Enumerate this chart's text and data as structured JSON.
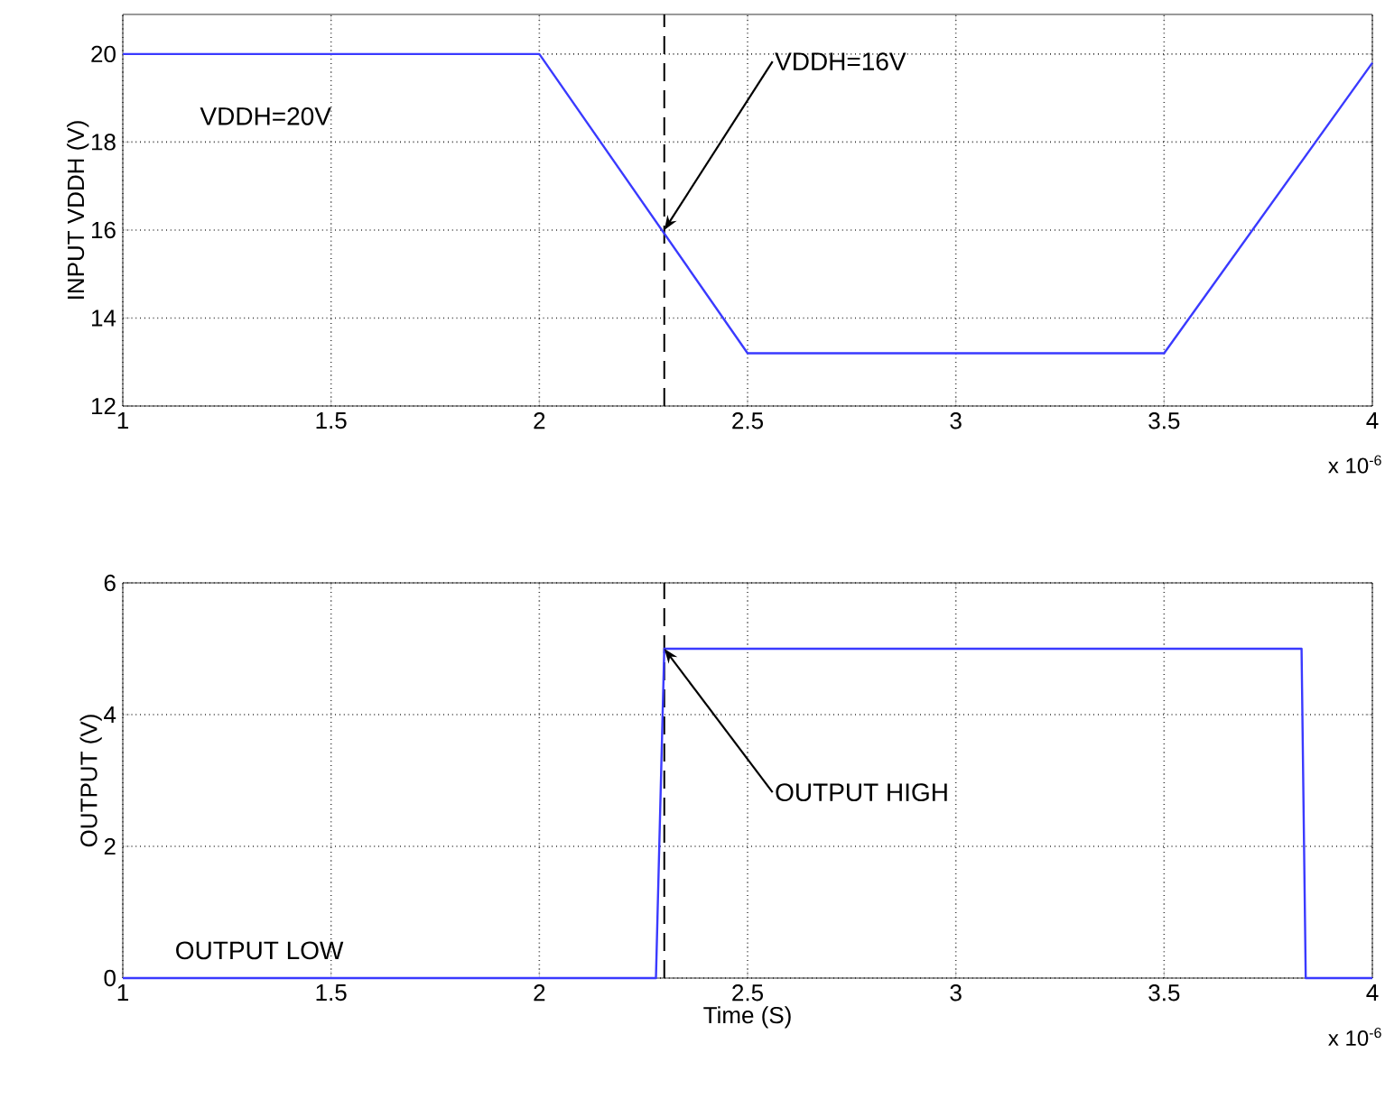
{
  "chart_data": [
    {
      "type": "line",
      "ylabel": "INPUT VDDH (V)",
      "xlim": [
        1,
        4
      ],
      "ylim": [
        12,
        20.9
      ],
      "xticks": [
        1,
        1.5,
        2,
        2.5,
        3,
        3.5,
        4
      ],
      "yticks": [
        12,
        14,
        16,
        18,
        20
      ],
      "grid": true,
      "series": [
        {
          "color": "#3a3aff",
          "x": [
            1,
            2,
            2.5,
            3.5,
            4
          ],
          "values": [
            20,
            20,
            13.2,
            13.2,
            19.8
          ]
        }
      ],
      "ref_lines": [
        {
          "axis": "x",
          "value": 2.3,
          "line_style": "dashed",
          "color": "#000000"
        }
      ],
      "annotations": [
        "VDDH=20V",
        {
          "text": "VDDH=16V",
          "x": 2.3,
          "y": 16
        },
        "x 10$^{-6}$"
      ]
    },
    {
      "type": "line",
      "ylabel": "OUTPUT (V)",
      "xlabel": "Time (S)",
      "xlim": [
        1,
        4
      ],
      "ylim": [
        0,
        6
      ],
      "xticks": [
        1,
        1.5,
        2,
        2.5,
        3,
        3.5,
        4
      ],
      "yticks": [
        0,
        2,
        4,
        6
      ],
      "grid": true,
      "series": [
        {
          "color": "#3a3aff",
          "x": [
            1,
            2.28,
            2.3,
            3.83,
            3.84,
            4
          ],
          "values": [
            0,
            0,
            5,
            5,
            0,
            0
          ]
        }
      ],
      "ref_lines": [
        {
          "axis": "x",
          "value": 2.3,
          "line_style": "dashed",
          "color": "#000000"
        }
      ],
      "annotations": [
        {
          "text": "OUTPUT HIGH",
          "x": 2.3,
          "y": 5
        },
        "OUTPUT LOW",
        "x 10$^{-6}$"
      ]
    }
  ]
}
